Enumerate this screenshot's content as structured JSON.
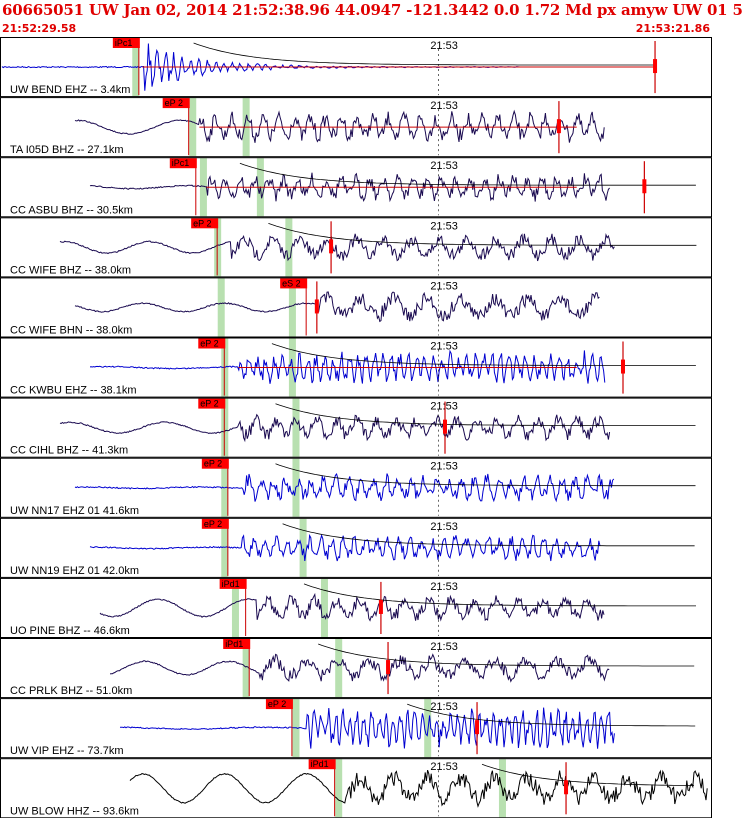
{
  "header": {
    "title": "60665051 UW Jan 02, 2014 21:52:38.96   44.0947 -121.3442  0.0 1.72 Md px amyw UW 01   5",
    "start_time": "21:52:29.58",
    "end_time": "21:53:21.86"
  },
  "colors": {
    "header_text": "#e00000",
    "pick_box": "#ff0000",
    "pick_line": "#cc0000",
    "green_band": "#b8e0b0",
    "trace_blue": "#0000d0",
    "trace_navy": "#1a0a50",
    "trace_black": "#000000",
    "fit_curve": "#000000"
  },
  "chart_data": {
    "type": "seismogram",
    "time_axis": {
      "start": "21:52:29.58",
      "end": "21:53:21.86",
      "minute_mark": "21:53"
    },
    "traces": [
      {
        "label": "UW BEND EHZ -- 3.4km",
        "pick": "iPc1",
        "color": "blue",
        "onset": 0.2,
        "pick_pos": 0.195,
        "band": 0.19,
        "band2": null,
        "end_mark": 0.92,
        "amp": 0.9,
        "freq": 6,
        "pre_amp": 0.0,
        "decay": true,
        "curve": true
      },
      {
        "label": "TA I05D BHZ -- 27.1km",
        "pick": "eP 2",
        "color": "navy",
        "onset": 0.28,
        "pick_pos": 0.265,
        "band": 0.27,
        "band2": 0.345,
        "end_mark": 0.785,
        "amp": 0.7,
        "freq": 3.2,
        "pre_amp": 0.35,
        "decay": false,
        "curve": false
      },
      {
        "label": "CC ASBU BHZ -- 30.5km",
        "pick": "iPc1",
        "color": "navy",
        "onset": 0.29,
        "pick_pos": 0.275,
        "band": 0.285,
        "band2": 0.365,
        "end_mark": 0.905,
        "amp": 0.65,
        "freq": 3.5,
        "pre_amp": 0.08,
        "decay": false,
        "curve": true
      },
      {
        "label": "CC WIFE BHZ -- 38.0km",
        "pick": "eP 2",
        "color": "navy",
        "onset": 0.325,
        "pick_pos": 0.305,
        "band": 0.305,
        "band2": 0.405,
        "end_mark": 0.465,
        "amp": 0.6,
        "freq": 1.8,
        "pre_amp": 0.3,
        "decay": false,
        "curve": true
      },
      {
        "label": "CC WIFE BHN -- 38.0km",
        "pick": "eS 2",
        "color": "navy",
        "onset": 0.445,
        "pick_pos": 0.43,
        "band": 0.31,
        "band2": 0.41,
        "end_mark": 0.445,
        "amp": 0.7,
        "freq": 1.5,
        "pre_amp": 0.22,
        "decay": false,
        "curve": false
      },
      {
        "label": "CC KWBU EHZ -- 38.1km",
        "pick": "eP 2",
        "color": "blue",
        "onset": 0.335,
        "pick_pos": 0.315,
        "band": 0.315,
        "band2": 0.41,
        "end_mark": 0.875,
        "amp": 0.75,
        "freq": 6,
        "pre_amp": 0.05,
        "decay": false,
        "curve": true
      },
      {
        "label": "CC CIHL BHZ -- 41.3km",
        "pick": "eP 2",
        "color": "navy",
        "onset": 0.335,
        "pick_pos": 0.315,
        "band": 0.315,
        "band2": 0.415,
        "end_mark": 0.625,
        "amp": 0.6,
        "freq": 2.5,
        "pre_amp": 0.28,
        "decay": false,
        "curve": true
      },
      {
        "label": "UW NN17 EHZ 01 41.6km",
        "pick": "eP 2",
        "color": "blue",
        "onset": 0.34,
        "pick_pos": 0.32,
        "band": 0.315,
        "band2": 0.415,
        "end_mark": null,
        "amp": 0.65,
        "freq": 4,
        "pre_amp": 0.04,
        "decay": false,
        "curve": true
      },
      {
        "label": "UW NN19 EHZ 01 42.0km",
        "pick": "eP 2",
        "color": "blue",
        "onset": 0.34,
        "pick_pos": 0.32,
        "band": 0.315,
        "band2": 0.425,
        "end_mark": null,
        "amp": 0.6,
        "freq": 4.5,
        "pre_amp": 0.04,
        "decay": false,
        "curve": true
      },
      {
        "label": "UO PINE BHZ -- 46.6km",
        "pick": "iPd1",
        "color": "navy",
        "onset": 0.36,
        "pick_pos": 0.345,
        "band": 0.33,
        "band2": 0.455,
        "end_mark": 0.535,
        "amp": 0.6,
        "freq": 2.2,
        "pre_amp": 0.45,
        "decay": false,
        "curve": true
      },
      {
        "label": "CC PRLK BHZ -- 51.0km",
        "pick": "iPd1",
        "color": "navy",
        "onset": 0.365,
        "pick_pos": 0.35,
        "band": 0.345,
        "band2": 0.475,
        "end_mark": 0.545,
        "amp": 0.6,
        "freq": 1.6,
        "pre_amp": 0.35,
        "decay": false,
        "curve": true
      },
      {
        "label": "UW VIP EHZ -- 73.7km",
        "pick": "eP 2",
        "color": "blue",
        "onset": 0.43,
        "pick_pos": 0.41,
        "band": 0.415,
        "band2": 0.6,
        "end_mark": 0.67,
        "amp": 0.95,
        "freq": 7,
        "pre_amp": 0.05,
        "decay": false,
        "curve": true
      },
      {
        "label": "UW BLOW HHZ -- 93.6km",
        "pick": "iPd1",
        "color": "black",
        "onset": 0.485,
        "pick_pos": 0.47,
        "band": 0.475,
        "band2": 0.705,
        "end_mark": 0.795,
        "amp": 0.8,
        "freq": 1.5,
        "pre_amp": 0.75,
        "decay": false,
        "curve": true
      }
    ]
  }
}
